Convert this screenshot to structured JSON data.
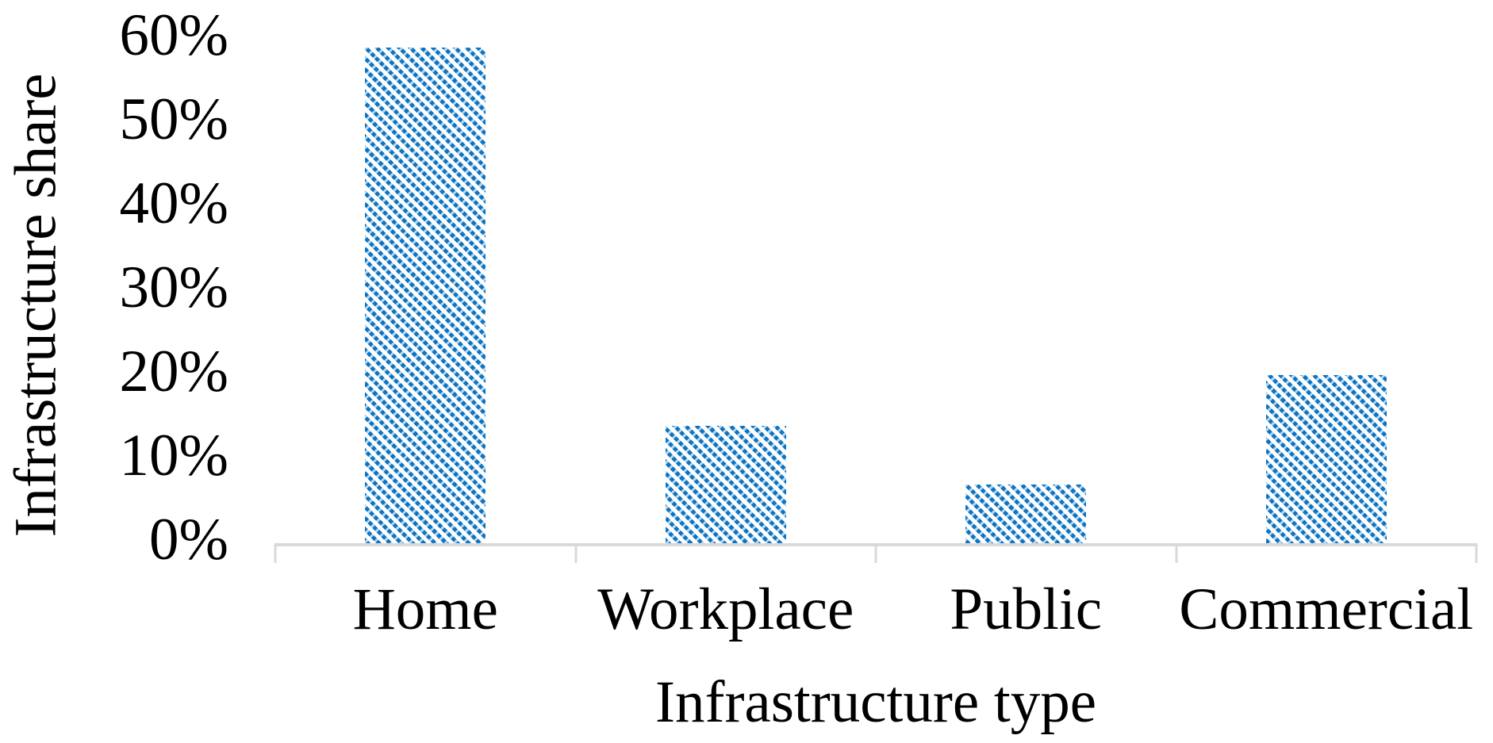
{
  "figure": {
    "background_color": "#FFFFFF",
    "text_color": "#000000"
  },
  "chart_data": {
    "type": "bar",
    "title": "",
    "categories": [
      "Home",
      "Workplace",
      "Public",
      "Commercial"
    ],
    "values": [
      59,
      14,
      7,
      20
    ],
    "value_unit": "%",
    "xlabel": "Infrastructure type",
    "ylabel": "Infrastructure share",
    "ylim": [
      0,
      60
    ],
    "yticks": [
      {
        "label": "0%",
        "value": 0
      },
      {
        "label": "10%",
        "value": 10
      },
      {
        "label": "20%",
        "value": 20
      },
      {
        "label": "30%",
        "value": 30
      },
      {
        "label": "40%",
        "value": 40
      },
      {
        "label": "50%",
        "value": 50
      },
      {
        "label": "60%",
        "value": 60
      }
    ],
    "grid": false,
    "legend": false,
    "bar_color": "#0D74C2",
    "bar_pattern": "diagonal-down-hatch",
    "axis_color": "#D9D9D9"
  }
}
